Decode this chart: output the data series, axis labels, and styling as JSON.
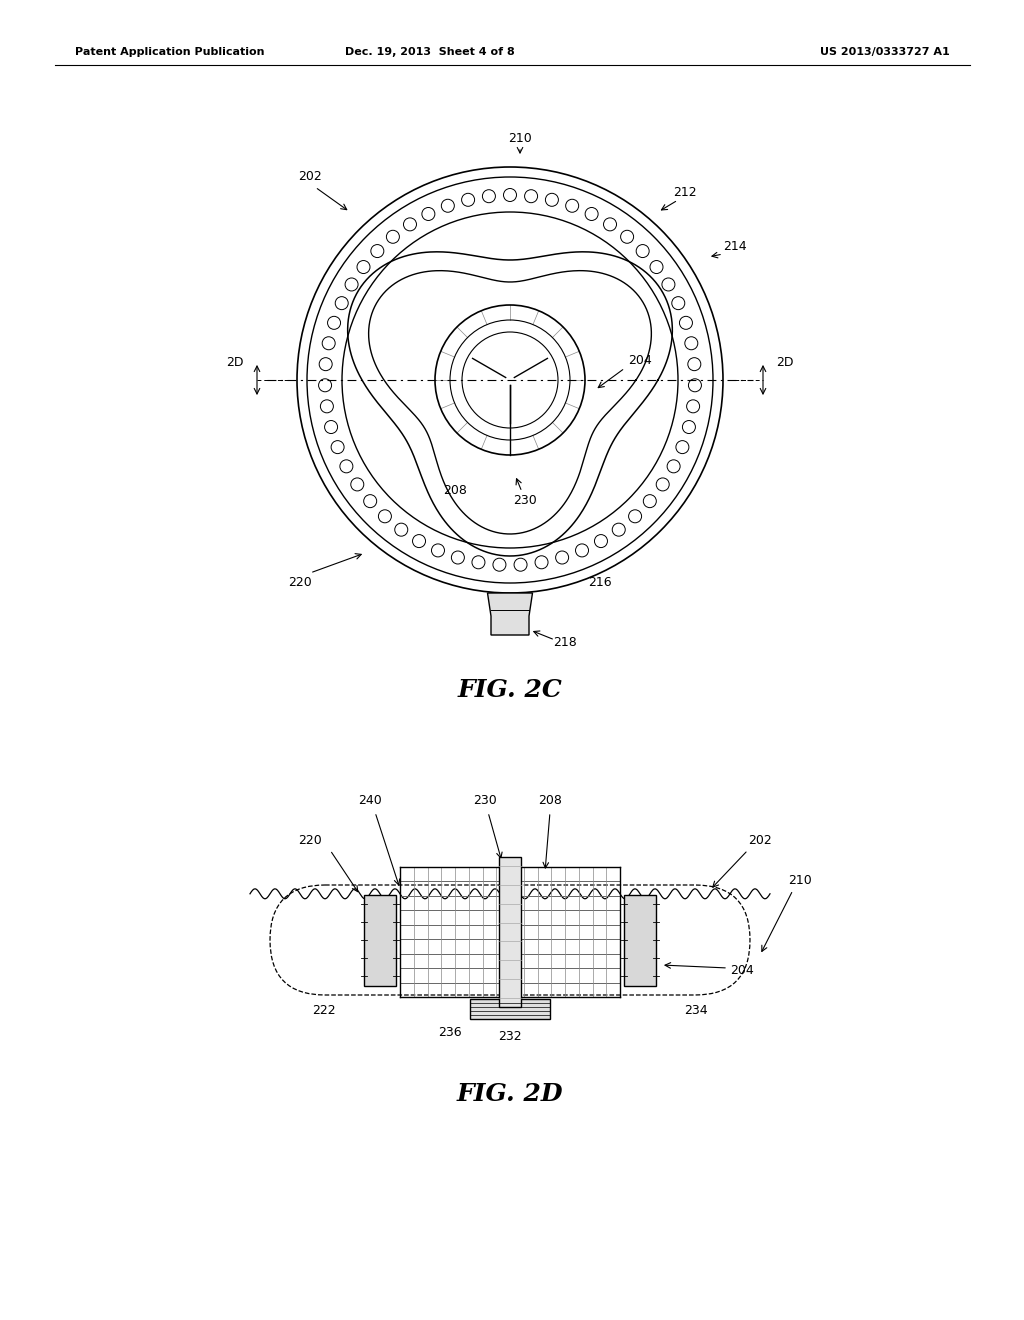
{
  "bg_color": "#ffffff",
  "header_left": "Patent Application Publication",
  "header_mid": "Dec. 19, 2013  Sheet 4 of 8",
  "header_right": "US 2013/0333727 A1",
  "fig2c_label": "FIG. 2C",
  "fig2d_label": "FIG. 2D"
}
